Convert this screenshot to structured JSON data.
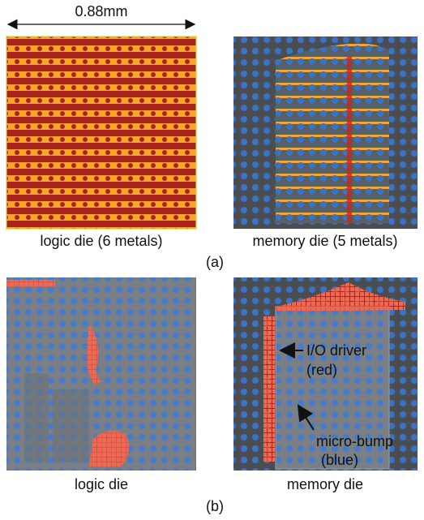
{
  "scale_label": "0.88mm",
  "panel_a": {
    "left_caption": "logic die (6 metals)",
    "right_caption": "memory die (5 metals)",
    "label": "(a)"
  },
  "panel_b": {
    "left_caption": "logic die",
    "right_caption": "memory die",
    "label": "(b)",
    "annotations": [
      "I/O driver",
      "(red)",
      "micro-bump",
      "(blue)"
    ]
  }
}
